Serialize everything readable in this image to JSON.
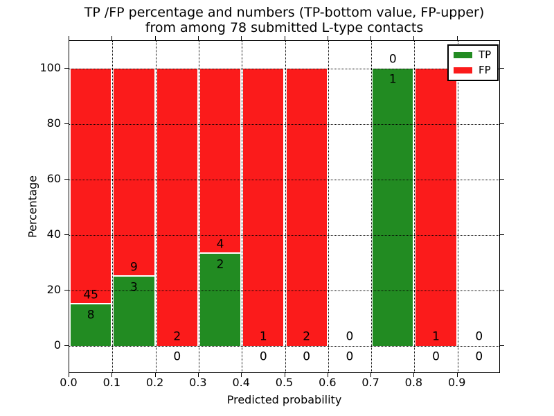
{
  "chart_data": {
    "type": "bar",
    "stacked": true,
    "title_line1": "TP /FP percentage and numbers (TP-bottom value, FP-upper)",
    "title_line2": "from among 78 submitted L-type contacts",
    "xlabel": "Predicted probability",
    "ylabel": "Percentage",
    "x_tick_labels": [
      "0.0",
      "0.1",
      "0.2",
      "0.3",
      "0.4",
      "0.5",
      "0.6",
      "0.7",
      "0.8",
      "0.9"
    ],
    "y_tick_values": [
      0,
      20,
      40,
      60,
      80,
      100
    ],
    "xlim": [
      0.0,
      1.0
    ],
    "ylim": [
      -10,
      110
    ],
    "grid": "dotted",
    "bin_width": 0.1,
    "bins": [
      {
        "range": "0.0-0.1",
        "tp": 8,
        "fp": 45,
        "tp_pct": 15.1
      },
      {
        "range": "0.1-0.2",
        "tp": 3,
        "fp": 9,
        "tp_pct": 25.0
      },
      {
        "range": "0.2-0.3",
        "tp": 0,
        "fp": 2,
        "tp_pct": 0.0
      },
      {
        "range": "0.3-0.4",
        "tp": 2,
        "fp": 4,
        "tp_pct": 33.3
      },
      {
        "range": "0.4-0.5",
        "tp": 0,
        "fp": 1,
        "tp_pct": 0.0
      },
      {
        "range": "0.5-0.6",
        "tp": 0,
        "fp": 2,
        "tp_pct": 0.0
      },
      {
        "range": "0.6-0.7",
        "tp": 0,
        "fp": 0,
        "tp_pct": null
      },
      {
        "range": "0.7-0.8",
        "tp": 1,
        "fp": 0,
        "tp_pct": 100.0
      },
      {
        "range": "0.8-0.9",
        "tp": 0,
        "fp": 1,
        "tp_pct": 0.0
      },
      {
        "range": "0.9-1.0",
        "tp": 0,
        "fp": 0,
        "tp_pct": null
      }
    ],
    "legend": {
      "position": "upper right",
      "entries": [
        {
          "label": "TP",
          "color": "#228b22"
        },
        {
          "label": "FP",
          "color": "#fb1b1b"
        }
      ]
    },
    "colors": {
      "tp": "#228b22",
      "fp": "#fb1b1b",
      "background": "#ffffff",
      "text": "#000000"
    }
  }
}
